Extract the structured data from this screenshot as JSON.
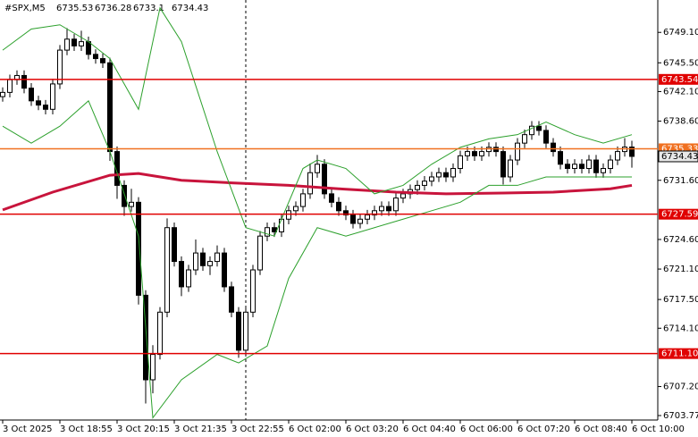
{
  "chart_data": {
    "type": "candlestick",
    "symbol": "#SPX,M5",
    "categories": [
      "3 Oct 2025",
      null,
      null,
      null,
      null,
      null,
      null,
      null,
      "3 Oct 18:55",
      null,
      null,
      null,
      null,
      null,
      null,
      null,
      "3 Oct 20:15",
      null,
      null,
      null,
      null,
      null,
      null,
      null,
      "3 Oct 21:35",
      null,
      null,
      null,
      null,
      null,
      null,
      null,
      "3 Oct 22:55",
      null,
      null,
      null,
      null,
      null,
      null,
      null,
      "6 Oct 02:00",
      null,
      null,
      null,
      null,
      null,
      null,
      null,
      "6 Oct 03:20",
      null,
      null,
      null,
      null,
      null,
      null,
      null,
      "6 Oct 04:40",
      null,
      null,
      null,
      null,
      null,
      null,
      null,
      "6 Oct 06:00",
      null,
      null,
      null,
      null,
      null,
      null,
      null,
      "6 Oct 07:20",
      null,
      null,
      null,
      null,
      null,
      null,
      null,
      "6 Oct 08:40",
      null,
      null,
      null,
      null,
      null,
      null,
      null,
      "6 Oct 10:00"
    ],
    "open": [
      6741.5,
      6742,
      6743.5,
      6744,
      6742.5,
      6741,
      6740.5,
      6740,
      6743,
      6747,
      6748.3,
      6747.5,
      6748,
      6746.5,
      6746,
      6745.5,
      6735,
      6731,
      6728.5,
      6729,
      6718,
      6708,
      6711,
      6716,
      6726,
      6722,
      6719,
      6721,
      6723,
      6721.5,
      6722,
      6723,
      6719,
      6716,
      6711.5,
      6716,
      6721,
      6725,
      6726,
      6725.5,
      6727,
      6728,
      6728.5,
      6730,
      6732.5,
      6733.5,
      6730,
      6729,
      6728,
      6727.5,
      6726.5,
      6727,
      6727.5,
      6728,
      6728.5,
      6728,
      6729.5,
      6730,
      6730.5,
      6731,
      6731.5,
      6732,
      6732.5,
      6732,
      6733,
      6734.5,
      6735,
      6734.5,
      6735,
      6735.5,
      6735,
      6732,
      6734,
      6736,
      6737,
      6738,
      6737.5,
      6736,
      6735,
      6733.5,
      6733,
      6733.5,
      6733,
      6734,
      6732.5,
      6733,
      6734,
      6735,
      6735.53
    ],
    "high": [
      6742.6,
      6744.1,
      6744.6,
      6744.6,
      6743.1,
      6741.6,
      6741.1,
      6743.6,
      6747.6,
      6749.6,
      6748.9,
      6749.3,
      6748.6,
      6747.1,
      6746.6,
      6746.1,
      6735.6,
      6731.6,
      6730.6,
      6729.6,
      6718.6,
      6712.1,
      6716.6,
      6727.1,
      6726.6,
      6722.6,
      6721.6,
      6724.6,
      6723.6,
      6722.6,
      6723.9,
      6723.6,
      6719.6,
      6716.6,
      6716.6,
      6721.6,
      6725.6,
      6726.6,
      6726.6,
      6727.6,
      6728.6,
      6729.1,
      6730.6,
      6733.6,
      6734.6,
      6734.1,
      6730.6,
      6729.6,
      6728.6,
      6728.1,
      6727.6,
      6728.1,
      6728.6,
      6729.1,
      6729.1,
      6730.1,
      6730.6,
      6731.1,
      6731.6,
      6732.1,
      6732.6,
      6733.1,
      6733.1,
      6733.6,
      6735.1,
      6735.6,
      6735.6,
      6735.6,
      6736.1,
      6736.1,
      6735.6,
      6734.6,
      6736.6,
      6737.6,
      6738.6,
      6738.6,
      6738.1,
      6736.6,
      6735.6,
      6734.1,
      6734.1,
      6734.1,
      6734.6,
      6734.6,
      6733.6,
      6734.6,
      6735.6,
      6736.6,
      6736.28
    ],
    "low": [
      6740.9,
      6741.4,
      6742.9,
      6741.9,
      6740.4,
      6739.9,
      6739.4,
      6739.4,
      6742.4,
      6746.4,
      6746.9,
      6746.9,
      6745.9,
      6745.4,
      6744.9,
      6733.9,
      6729.4,
      6727.4,
      6727.9,
      6716.9,
      6705.2,
      6706.4,
      6710.4,
      6715.4,
      6721.4,
      6717.9,
      6718.4,
      6720.4,
      6720.9,
      6720.4,
      6721.4,
      6718.4,
      6715.4,
      6710.6,
      6710.9,
      6715.4,
      6720.4,
      6724.4,
      6724.9,
      6724.9,
      6726.4,
      6727.4,
      6727.9,
      6729.4,
      6731.9,
      6729.4,
      6728.4,
      6727.4,
      6726.9,
      6725.9,
      6725.9,
      6726.4,
      6726.9,
      6727.4,
      6727.4,
      6727.4,
      6728.9,
      6729.4,
      6729.9,
      6730.4,
      6730.9,
      6731.4,
      6731.4,
      6731.4,
      6732.4,
      6733.9,
      6733.9,
      6733.9,
      6734.4,
      6734.4,
      6731.1,
      6731.4,
      6733.4,
      6735.4,
      6736.4,
      6736.9,
      6735.4,
      6734.4,
      6732.9,
      6732.4,
      6732.4,
      6732.4,
      6732.4,
      6731.9,
      6731.9,
      6732.4,
      6733.4,
      6734.4,
      6733.1
    ],
    "close": [
      6742,
      6743.5,
      6744,
      6742.5,
      6741,
      6740.5,
      6740,
      6743,
      6747,
      6748.3,
      6747.5,
      6748,
      6746.5,
      6746,
      6745.5,
      6735,
      6731,
      6728.5,
      6729,
      6718,
      6708,
      6711,
      6716,
      6726,
      6722,
      6719,
      6721,
      6723,
      6721.5,
      6722,
      6723,
      6719,
      6716,
      6711.5,
      6716,
      6721,
      6725,
      6726,
      6725.5,
      6727,
      6728,
      6728.5,
      6730,
      6732.5,
      6733.5,
      6730,
      6729,
      6728,
      6727.5,
      6726.5,
      6727,
      6727.5,
      6728,
      6728.5,
      6728,
      6729.5,
      6730,
      6730.5,
      6731,
      6731.5,
      6732,
      6732.5,
      6732,
      6733,
      6734.5,
      6735,
      6734.5,
      6735,
      6735.5,
      6735,
      6732,
      6734,
      6736,
      6737,
      6738,
      6737.5,
      6736,
      6735,
      6733.5,
      6733,
      6733.5,
      6733,
      6734,
      6732.5,
      6733,
      6734,
      6735,
      6735.53,
      6734.43
    ],
    "up_color": "#ffffff",
    "down_color": "#000000",
    "wick_color": "#000000",
    "overlays": [
      {
        "color": "#c8143c",
        "width": 3,
        "x": [
          0,
          7,
          15,
          19,
          25,
          32,
          40,
          47,
          55,
          62,
          70,
          77,
          85,
          88
        ],
        "values": [
          6728.1,
          6730.2,
          6732.2,
          6732.4,
          6731.6,
          6731.3,
          6731.0,
          6730.6,
          6730.2,
          6730.0,
          6730.1,
          6730.2,
          6730.6,
          6731.0
        ]
      },
      {
        "color": "#2ca02c",
        "width": 1,
        "x": [
          0,
          4,
          8,
          12,
          15,
          19,
          22,
          25,
          30,
          34,
          38,
          42,
          44,
          48,
          52,
          56,
          60,
          64,
          68,
          72,
          76,
          80,
          84,
          88
        ],
        "values": [
          6747,
          6749.5,
          6750,
          6748,
          6746,
          6740,
          6752,
          6748,
          6735,
          6726,
          6725,
          6733,
          6734,
          6733,
          6730,
          6731,
          6733.5,
          6735.5,
          6736.5,
          6737,
          6738.5,
          6737,
          6736,
          6737
        ]
      },
      {
        "color": "#2ca02c",
        "width": 1,
        "x": [
          0,
          4,
          8,
          12,
          15,
          19,
          21,
          25,
          30,
          33,
          37,
          40,
          44,
          48,
          52,
          56,
          60,
          64,
          68,
          72,
          76,
          80,
          84,
          88
        ],
        "values": [
          6738,
          6736,
          6738,
          6741,
          6735,
          6725,
          6703.5,
          6708,
          6711,
          6710,
          6712,
          6720,
          6726,
          6725,
          6726,
          6727,
          6728,
          6729,
          6731,
          6731,
          6732,
          6732,
          6732,
          6732
        ]
      }
    ],
    "levels": [
      {
        "value": 6743.54,
        "color": "#e00000"
      },
      {
        "value": 6735.33,
        "color": "#f07020"
      },
      {
        "value": 6727.59,
        "color": "#e00000"
      },
      {
        "value": 6711.1,
        "label": "6711.10",
        "color": "#e00000"
      }
    ],
    "ylim": [
      6703.24,
      6752.93
    ],
    "yticks": [
      {
        "value": 6749.1,
        "label": "6749.10"
      },
      {
        "value": 6745.5,
        "label": "6745.50"
      },
      {
        "value": 6742.1,
        "label": "6742.10"
      },
      {
        "value": 6738.6,
        "label": "6738.60"
      },
      {
        "value": 6731.6,
        "label": "6731.60"
      },
      {
        "value": 6724.6,
        "label": "6724.60"
      },
      {
        "value": 6721.1,
        "label": "6721.10"
      },
      {
        "value": 6717.5,
        "label": "6717.50"
      },
      {
        "value": 6714.1,
        "label": "6714.10"
      },
      {
        "value": 6707.2,
        "label": "6707.20"
      },
      6703.77
    ]
  }
}
